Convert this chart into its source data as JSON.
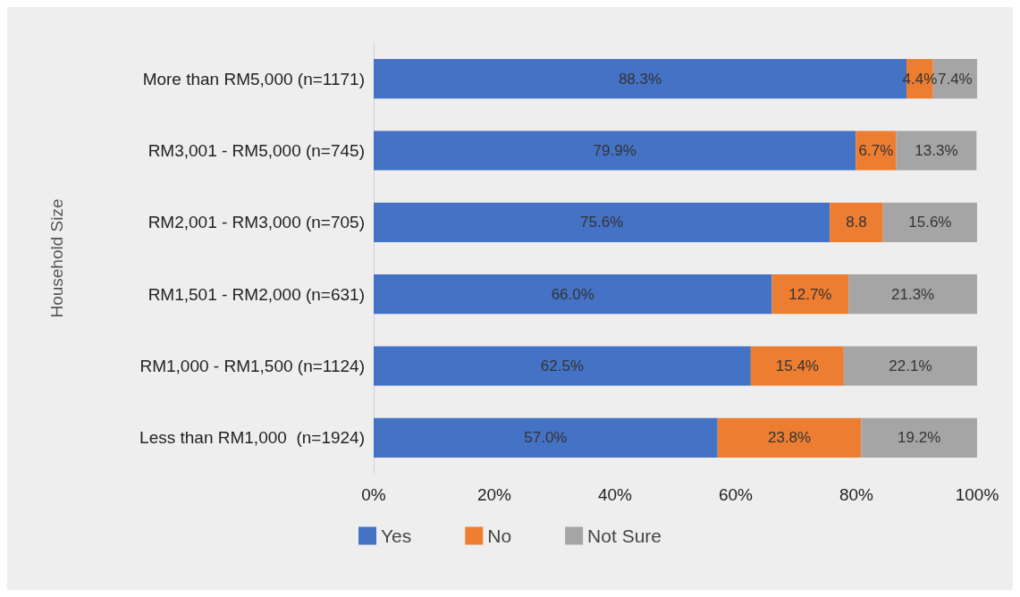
{
  "chart_data": {
    "type": "bar",
    "orientation": "horizontal",
    "stacked": true,
    "ylabel": "Household Size",
    "categories": [
      "More than RM5,000 (n=1171)",
      "RM3,001 - RM5,000 (n=745)",
      "RM2,001 - RM3,000 (n=705)",
      "RM1,501 - RM2,000 (n=631)",
      "RM1,000 - RM1,500 (n=1124)",
      "Less than RM1,000  (n=1924)"
    ],
    "series": [
      {
        "name": "Yes",
        "color": "#4472c4",
        "values": [
          88.3,
          79.9,
          75.6,
          66.0,
          62.5,
          57.0
        ],
        "value_labels": [
          "88.3%",
          "79.9%",
          "75.6%",
          "66.0%",
          "62.5%",
          "57.0%"
        ]
      },
      {
        "name": "No",
        "color": "#ed7d31",
        "values": [
          4.4,
          6.7,
          8.8,
          12.7,
          15.4,
          23.8
        ],
        "value_labels": [
          "4.4%",
          "6.7%",
          "8.8",
          "12.7%",
          "15.4%",
          "23.8%"
        ]
      },
      {
        "name": "Not Sure",
        "color": "#a5a5a5",
        "values": [
          7.4,
          13.3,
          15.6,
          21.3,
          22.1,
          19.2
        ],
        "value_labels": [
          "7.4%",
          "13.3%",
          "15.6%",
          "21.3%",
          "22.1%",
          "19.2%"
        ]
      }
    ],
    "xlim": [
      0,
      100
    ],
    "xticks": [
      {
        "value": 0,
        "label": "0%"
      },
      {
        "value": 20,
        "label": "20%"
      },
      {
        "value": 40,
        "label": "40%"
      },
      {
        "value": 60,
        "label": "60%"
      },
      {
        "value": 80,
        "label": "80%"
      },
      {
        "value": 100,
        "label": "100%"
      }
    ],
    "grid": false,
    "legend": "bottom"
  }
}
